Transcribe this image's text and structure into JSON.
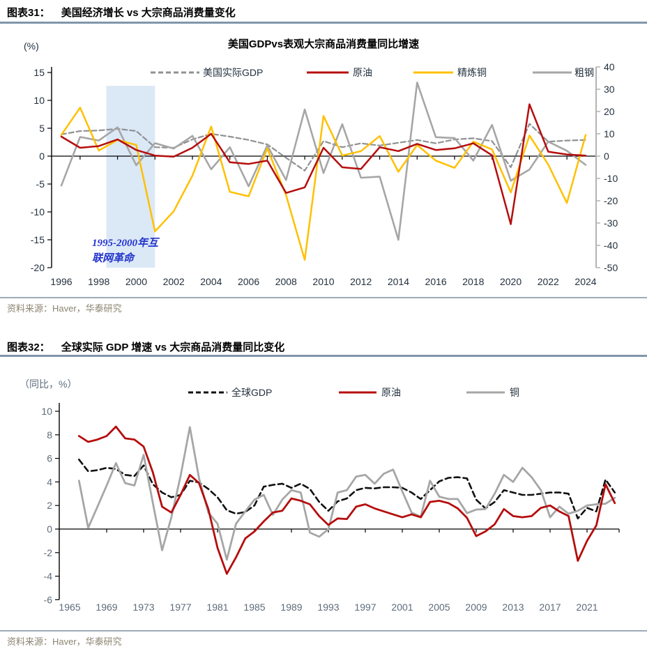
{
  "figure31": {
    "label": "图表31：",
    "title": "美国经济增长 vs 大宗商品消费量变化",
    "source": "资料来源：Haver，华泰研究"
  },
  "figure32": {
    "label": "图表32：",
    "title": "全球实际 GDP 增速 vs 大宗商品消费量同比变化",
    "source": "资料来源：Haver，华泰研究"
  },
  "chart_data": [
    {
      "type": "line",
      "title": "美国GDPvs表观大宗商品消费量同比增速",
      "unit_label": "(%)",
      "legend_position": "top",
      "x": [
        1996,
        1997,
        1998,
        1999,
        2000,
        2001,
        2002,
        2003,
        2004,
        2005,
        2006,
        2007,
        2008,
        2009,
        2010,
        2011,
        2012,
        2013,
        2014,
        2015,
        2016,
        2017,
        2018,
        2019,
        2020,
        2021,
        2022,
        2023,
        2024
      ],
      "series": [
        {
          "name": "美国实际GDP",
          "color": "#8f9193",
          "style": "dashed",
          "axis": "left",
          "values": [
            3.9,
            4.5,
            4.6,
            4.9,
            4.5,
            1.6,
            1.5,
            3.0,
            4.0,
            3.5,
            2.9,
            2.1,
            -0.3,
            -2.6,
            2.7,
            1.6,
            2.3,
            1.9,
            2.4,
            2.9,
            2.3,
            3.0,
            3.2,
            2.7,
            -2.0,
            5.8,
            2.6,
            2.8,
            2.9
          ]
        },
        {
          "name": "原油",
          "color": "#b50d0d",
          "style": "solid",
          "axis": "left",
          "values": [
            3.5,
            1.5,
            1.8,
            3.0,
            1.1,
            0.1,
            -0.1,
            1.5,
            4.0,
            -1.1,
            -1.4,
            -0.8,
            -6.6,
            -5.6,
            1.5,
            -2.0,
            -2.3,
            1.6,
            0.9,
            2.2,
            1.1,
            1.4,
            2.3,
            0.15,
            -12.2,
            9.3,
            0.8,
            0.3,
            0.1
          ]
        },
        {
          "name": "精炼铜",
          "color": "#ffc000",
          "style": "solid",
          "axis": "left",
          "values": [
            3.8,
            8.7,
            1.0,
            2.9,
            2.0,
            -13.5,
            -9.9,
            -3.5,
            5.3,
            -6.4,
            -7.2,
            1.4,
            -7.0,
            -18.6,
            7.2,
            0.1,
            0.9,
            3.6,
            -2.8,
            2.0,
            -0.8,
            -2.1,
            2.6,
            1.2,
            -6.5,
            3.7,
            -1.5,
            -8.4,
            3.8
          ]
        },
        {
          "name": "粗钢",
          "color": "#a6a6a6",
          "style": "solid",
          "axis": "right",
          "values": [
            -13.2,
            8.6,
            7.0,
            12.9,
            -4.1,
            5.8,
            3.4,
            9.1,
            -5.9,
            4.0,
            -13.5,
            4.8,
            -10.7,
            20.9,
            -7.6,
            14.3,
            -9.7,
            -9.2,
            -37.5,
            33.0,
            8.5,
            8.1,
            -2.0,
            14.0,
            -11.0,
            -6.0,
            6.5,
            2.4,
            -3.9
          ]
        }
      ],
      "left_axis": {
        "ticks": [
          15,
          10,
          5,
          0,
          -5,
          -10,
          -15,
          -20
        ],
        "range": [
          -20,
          15
        ]
      },
      "right_axis": {
        "ticks": [
          40,
          30,
          20,
          10,
          0,
          -10,
          -20,
          -30,
          -40,
          -50
        ],
        "range": [
          -50,
          40
        ]
      },
      "x_tick_labels": [
        "1996",
        "1998",
        "2000",
        "2002",
        "2004",
        "2006",
        "2008",
        "2010",
        "2012",
        "2014",
        "2016",
        "2018",
        "2020",
        "2022",
        "2024"
      ],
      "band": {
        "x_start": 1998.4,
        "x_end": 2001,
        "y_top": 12.6,
        "color": "#dbe8f6"
      },
      "annotation": {
        "lines": [
          "1995-2000年互",
          "联网革命"
        ],
        "color": "#2233cc"
      }
    },
    {
      "type": "line",
      "title": "",
      "unit_label": "（同比，%）",
      "legend_position": "top",
      "x": [
        1966,
        1967,
        1968,
        1969,
        1970,
        1971,
        1972,
        1973,
        1974,
        1975,
        1976,
        1977,
        1978,
        1979,
        1980,
        1981,
        1982,
        1983,
        1984,
        1985,
        1986,
        1987,
        1988,
        1989,
        1990,
        1991,
        1992,
        1993,
        1994,
        1995,
        1996,
        1997,
        1998,
        1999,
        2000,
        2001,
        2002,
        2003,
        2004,
        2005,
        2006,
        2007,
        2008,
        2009,
        2010,
        2011,
        2012,
        2013,
        2014,
        2015,
        2016,
        2017,
        2018,
        2019,
        2020,
        2021,
        2022,
        2023,
        2024
      ],
      "series": [
        {
          "name": "全球GDP",
          "color": "#111111",
          "style": "dashed",
          "axis": "left",
          "values": [
            5.9,
            4.9,
            5.0,
            5.2,
            5.1,
            4.6,
            4.5,
            5.4,
            3.8,
            3.1,
            2.7,
            2.9,
            4.1,
            3.95,
            3.4,
            2.7,
            1.6,
            1.3,
            1.45,
            2.0,
            3.6,
            3.75,
            3.85,
            3.5,
            3.85,
            3.4,
            2.3,
            1.55,
            2.35,
            2.6,
            3.3,
            3.5,
            3.45,
            3.55,
            3.55,
            3.5,
            3.1,
            2.55,
            3.3,
            4.05,
            4.35,
            4.4,
            4.3,
            2.5,
            1.75,
            2.3,
            3.3,
            3.1,
            2.9,
            2.9,
            3.0,
            3.1,
            3.1,
            3.0,
            0.9,
            1.8,
            1.5,
            4.2,
            3.1
          ]
        },
        {
          "name": "原油",
          "color": "#b50d0d",
          "style": "solid",
          "axis": "left",
          "values": [
            7.9,
            7.4,
            7.6,
            7.9,
            8.7,
            7.7,
            7.6,
            7.0,
            4.8,
            1.9,
            1.4,
            2.9,
            4.6,
            3.9,
            1.7,
            -1.6,
            -3.8,
            -2.4,
            -0.8,
            -0.2,
            0.65,
            1.4,
            1.55,
            2.6,
            2.4,
            2.1,
            1.1,
            0.35,
            0.9,
            0.85,
            1.9,
            2.1,
            1.75,
            1.5,
            1.25,
            1.0,
            1.25,
            1.0,
            2.3,
            2.4,
            2.2,
            1.75,
            0.95,
            -0.6,
            -0.2,
            0.4,
            1.7,
            1.1,
            1.0,
            1.1,
            1.8,
            2.0,
            1.5,
            1.1,
            -2.7,
            -1.0,
            0.3,
            3.8,
            2.2
          ]
        },
        {
          "name": "铜",
          "color": "#a6a6a6",
          "style": "solid",
          "axis": "left",
          "values": [
            4.1,
            0.1,
            1.9,
            3.7,
            5.6,
            3.9,
            3.7,
            6.3,
            2.2,
            -1.8,
            1.0,
            4.5,
            8.65,
            4.3,
            1.4,
            0.45,
            -2.6,
            0.45,
            1.5,
            2.5,
            2.9,
            1.2,
            2.5,
            3.3,
            3.1,
            -0.3,
            -0.65,
            0.0,
            3.1,
            3.3,
            4.45,
            4.6,
            3.85,
            4.7,
            5.05,
            3.2,
            1.4,
            1.05,
            4.1,
            2.75,
            2.55,
            2.55,
            1.35,
            1.65,
            1.7,
            3.0,
            4.6,
            4.0,
            5.2,
            4.4,
            3.3,
            1.0,
            1.9,
            1.3,
            1.55,
            2.0,
            2.1,
            2.15,
            2.65
          ]
        }
      ],
      "left_axis": {
        "ticks": [
          10,
          8,
          6,
          4,
          2,
          0,
          -2,
          -4,
          -6
        ],
        "range": [
          -6,
          10
        ]
      },
      "x_tick_labels": [
        "1965",
        "1969",
        "1973",
        "1977",
        "1981",
        "1985",
        "1989",
        "1993",
        "1997",
        "2001",
        "2005",
        "2009",
        "2013",
        "2017",
        "2021"
      ]
    }
  ]
}
